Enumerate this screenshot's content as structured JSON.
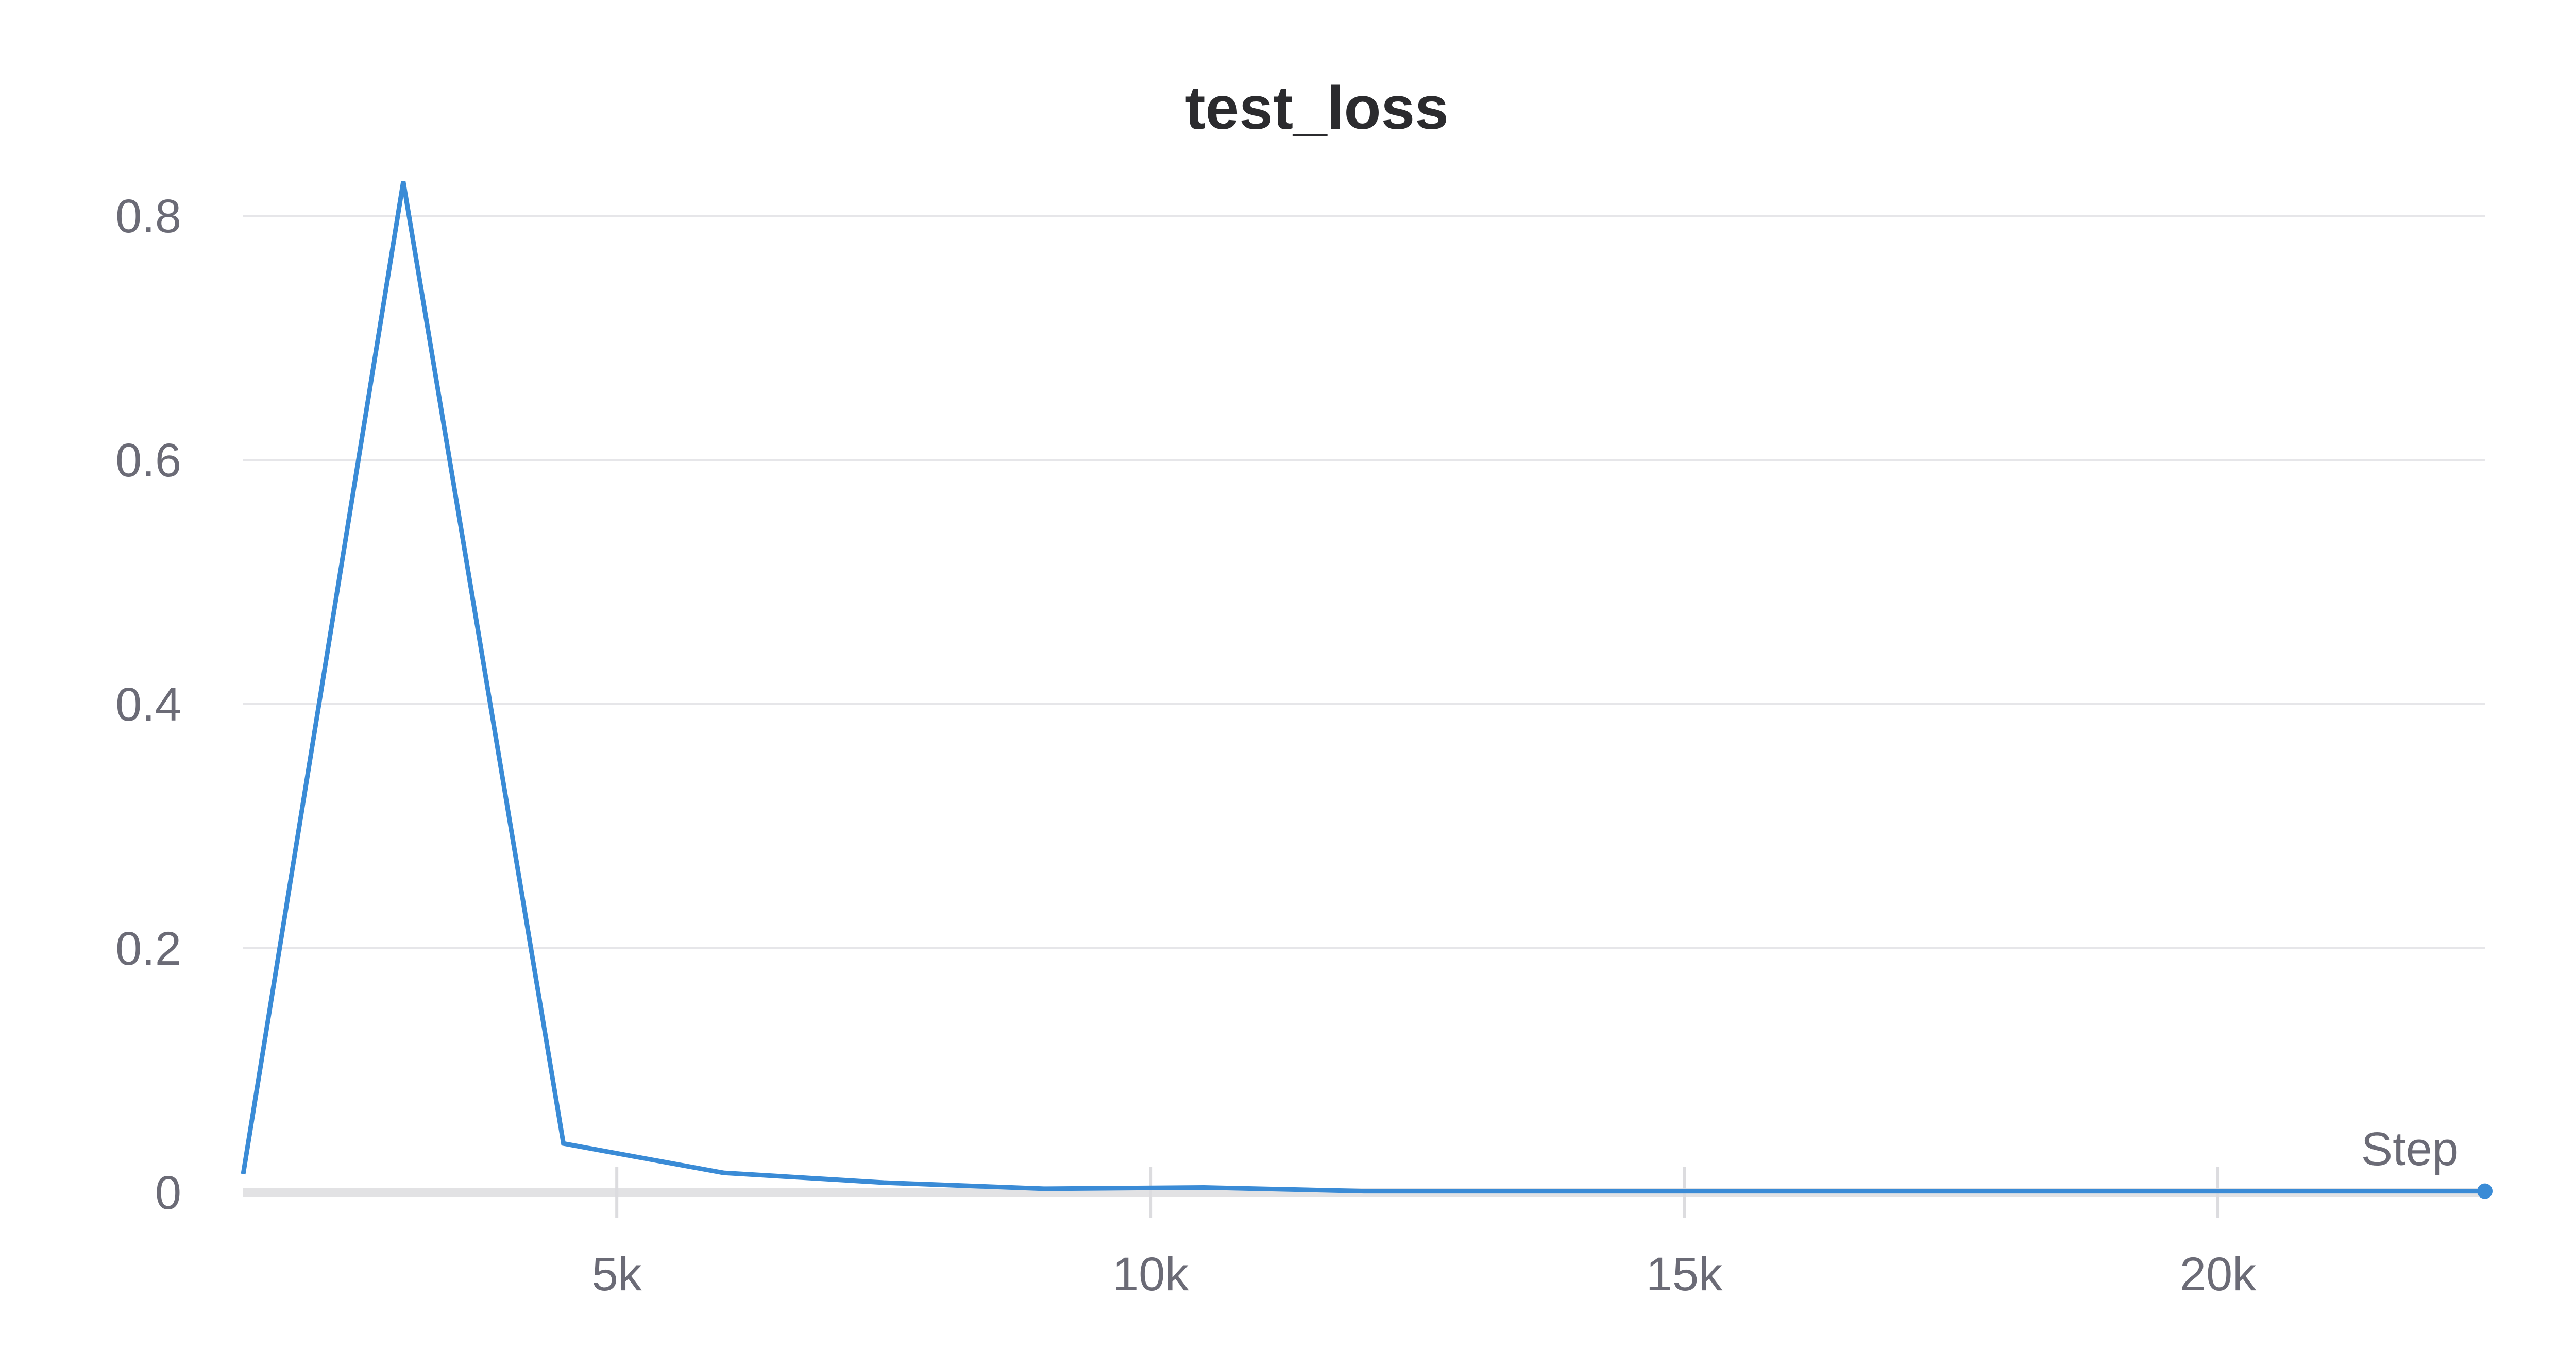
{
  "chart_data": {
    "type": "line",
    "title": "test_loss",
    "xlabel": "Step",
    "ylabel": "",
    "xlim": [
      1500,
      22500
    ],
    "ylim": [
      0,
      0.8
    ],
    "x_ticks": [
      5000,
      10000,
      15000,
      20000
    ],
    "x_tick_labels": [
      "5k",
      "10k",
      "15k",
      "20k"
    ],
    "y_ticks": [
      0,
      0.2,
      0.4,
      0.6,
      0.8
    ],
    "y_tick_labels": [
      "0",
      "0.2",
      "0.4",
      "0.6",
      "0.8"
    ],
    "grid": true,
    "color": "#3a8bd6",
    "series": [
      {
        "x": [
          1500,
          3000,
          4500,
          6000,
          7500,
          9000,
          10500,
          12000,
          22500
        ],
        "y": [
          0.015,
          0.828,
          0.04,
          0.016,
          0.008,
          0.003,
          0.004,
          0.001,
          0.001
        ]
      }
    ],
    "end_marker": true
  }
}
